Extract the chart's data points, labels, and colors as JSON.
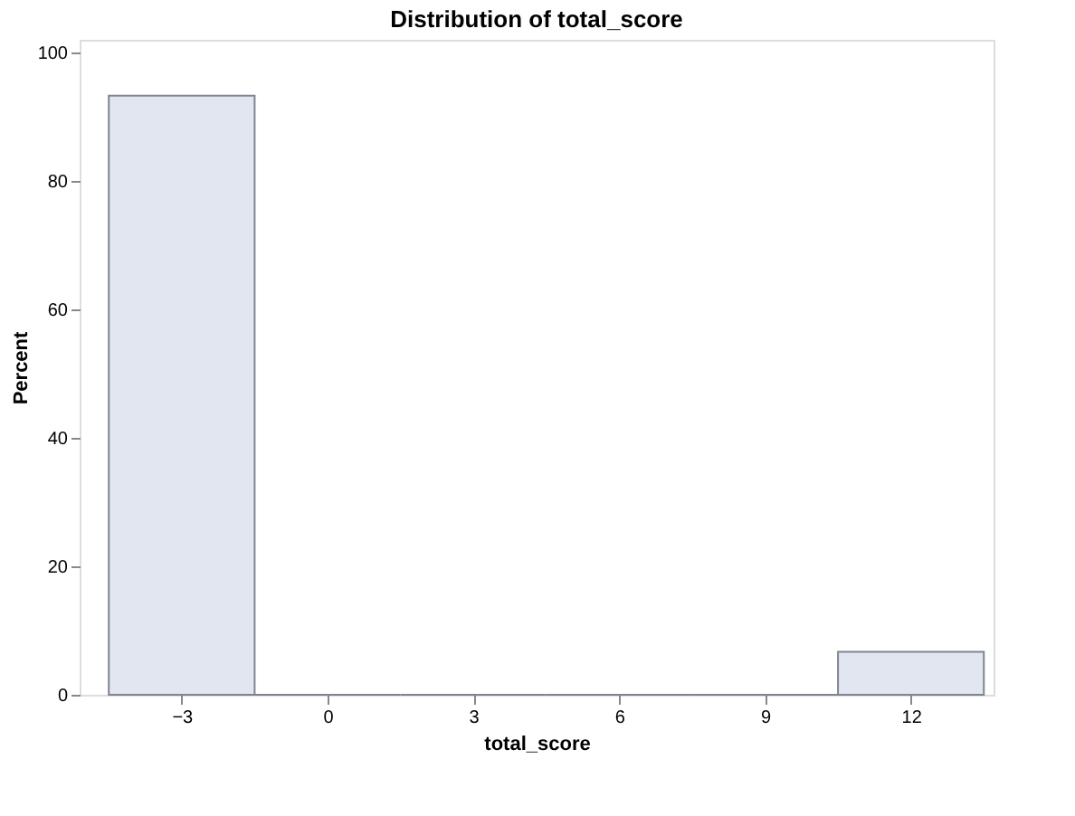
{
  "chart_data": {
    "type": "histogram",
    "title": "Distribution of total_score",
    "xlabel": "total_score",
    "ylabel": "Percent",
    "bins": [
      -4.5,
      -1.5,
      1.5,
      4.5,
      7.5,
      10.5,
      13.5
    ],
    "values": [
      93.3,
      0,
      0,
      0,
      0,
      6.7
    ],
    "color": "#e2e6f1",
    "xlim": [
      -5.1,
      13.7
    ],
    "xticks": [
      -3,
      0,
      3,
      6,
      9,
      12
    ],
    "ylim": [
      0,
      102
    ],
    "yticks": [
      0,
      20,
      40,
      60,
      80,
      100
    ],
    "grid": false
  }
}
